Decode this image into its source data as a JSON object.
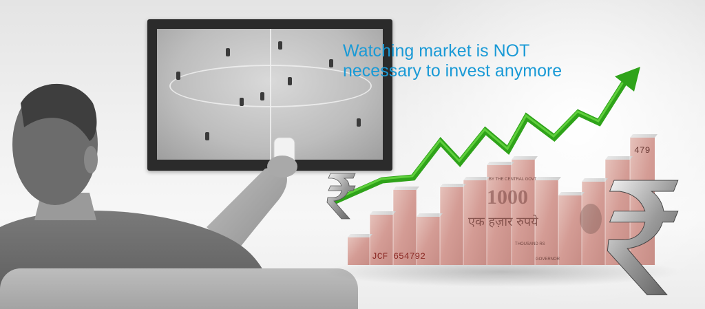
{
  "headline": {
    "line1": "Watching market is NOT",
    "line2": "necessary to invest anymore",
    "color": "#1a9ad6"
  },
  "banknote": {
    "serial": "JCF 654792",
    "denomination": "1000",
    "corner_number": "479",
    "hindi_text": "एक हज़ार रुपये",
    "bank_text": "BY THE CENTRAL GOVT",
    "thousand_text": "THOUSAND RS",
    "governor_text": "GOVERNOR"
  },
  "icons": {
    "rupee_symbol": "rupee-symbol-icon",
    "arrow": "trend-arrow-icon",
    "tv": "tv-icon",
    "person": "viewer-silhouette",
    "remote": "remote-icon"
  },
  "colors": {
    "arrow_green": "#2fa31a",
    "banknote_pink": "#d9a6a0",
    "headline_blue": "#1a9ad6"
  }
}
